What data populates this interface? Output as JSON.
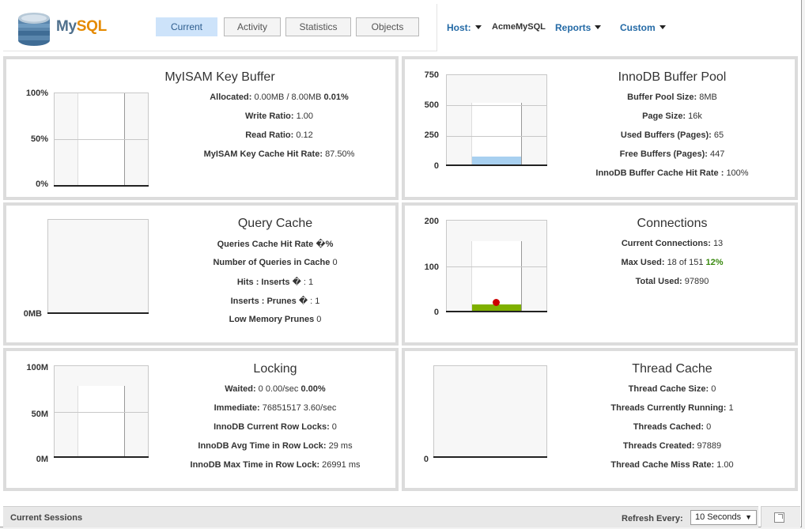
{
  "header": {
    "logo": {
      "my": "My",
      "sql": "SQL"
    },
    "tabs": [
      {
        "label": "Current",
        "active": true
      },
      {
        "label": "Activity",
        "active": false
      },
      {
        "label": "Statistics",
        "active": false
      },
      {
        "label": "Objects",
        "active": false
      }
    ],
    "host_label": "Host:",
    "host_value": "AcmeMySQL",
    "reports_label": "Reports",
    "custom_label": "Custom"
  },
  "panels": {
    "myisam": {
      "title": "MyISAM Key Buffer",
      "axis": [
        "100%",
        "50%",
        "0%"
      ],
      "stats": {
        "allocated_k": "Allocated:",
        "allocated_v": "0.00MB / 8.00MB",
        "allocated_pct": "0.01%",
        "write_k": "Write Ratio:",
        "write_v": "1.00",
        "read_k": "Read Ratio:",
        "read_v": "0.12",
        "hit_k": "MyISAM Key Cache Hit Rate:",
        "hit_v": "87.50%"
      },
      "fill_fraction": 0.0001
    },
    "innodb": {
      "title": "InnoDB Buffer Pool",
      "axis": [
        "750",
        "500",
        "250",
        "0"
      ],
      "stats": {
        "size_k": "Buffer Pool Size:",
        "size_v": "8MB",
        "page_k": "Page Size:",
        "page_v": "16k",
        "used_k": "Used Buffers (Pages):",
        "used_v": "65",
        "free_k": "Free Buffers (Pages):",
        "free_v": "447",
        "hit_k": "InnoDB Buffer Cache Hit Rate :",
        "hit_v": "100%"
      },
      "bar_total": 512,
      "bar_used": 65,
      "axis_max": 750,
      "fill_color": "#a8d0f0"
    },
    "query_cache": {
      "title": "Query Cache",
      "axis": [
        "0MB"
      ],
      "stats": {
        "hit_k": "Queries Cache Hit Rate",
        "hit_v": "�%",
        "num_k": "Number of Queries in Cache",
        "num_v": "0",
        "hits_k": "Hits : Inserts",
        "hits_v": "� : 1",
        "ins_k": "Inserts : Prunes",
        "ins_v": "� : 1",
        "low_k": "Low Memory Prunes",
        "low_v": "0"
      }
    },
    "connections": {
      "title": "Connections",
      "axis": [
        "200",
        "100",
        "0"
      ],
      "stats": {
        "cur_k": "Current Connections:",
        "cur_v": "13",
        "max_k": "Max Used:",
        "max_v": "18 of 151",
        "max_pct": "12%",
        "tot_k": "Total Used:",
        "tot_v": "97890"
      },
      "bar_total": 151,
      "current": 13,
      "max_used": 18,
      "axis_max": 200,
      "fill_color": "#7fb000",
      "dot_color": "#cc0000"
    },
    "locking": {
      "title": "Locking",
      "axis": [
        "100M",
        "50M",
        "0M"
      ],
      "stats": {
        "wait_k": "Waited:",
        "wait_v": "0 0.00/sec",
        "wait_pct": "0.00%",
        "imm_k": "Immediate:",
        "imm_v": "76851517 3.60/sec",
        "cur_k": "InnoDB Current Row Locks:",
        "cur_v": "0",
        "avg_k": "InnoDB Avg Time in Row Lock:",
        "avg_v": "29 ms",
        "max_k": "InnoDB Max Time in Row Lock:",
        "max_v": "26991 ms"
      },
      "bar_value": 76851517,
      "axis_max": 100000000
    },
    "thread_cache": {
      "title": "Thread Cache",
      "axis": [
        "0"
      ],
      "stats": {
        "size_k": "Thread Cache Size:",
        "size_v": "0",
        "run_k": "Threads Currently Running:",
        "run_v": "1",
        "cached_k": "Threads Cached:",
        "cached_v": "0",
        "created_k": "Threads Created:",
        "created_v": "97889",
        "miss_k": "Thread Cache Miss Rate:",
        "miss_v": "1.00"
      }
    }
  },
  "footer": {
    "sessions_label": "Current Sessions",
    "refresh_label": "Refresh Every:",
    "refresh_value": "10 Seconds"
  }
}
